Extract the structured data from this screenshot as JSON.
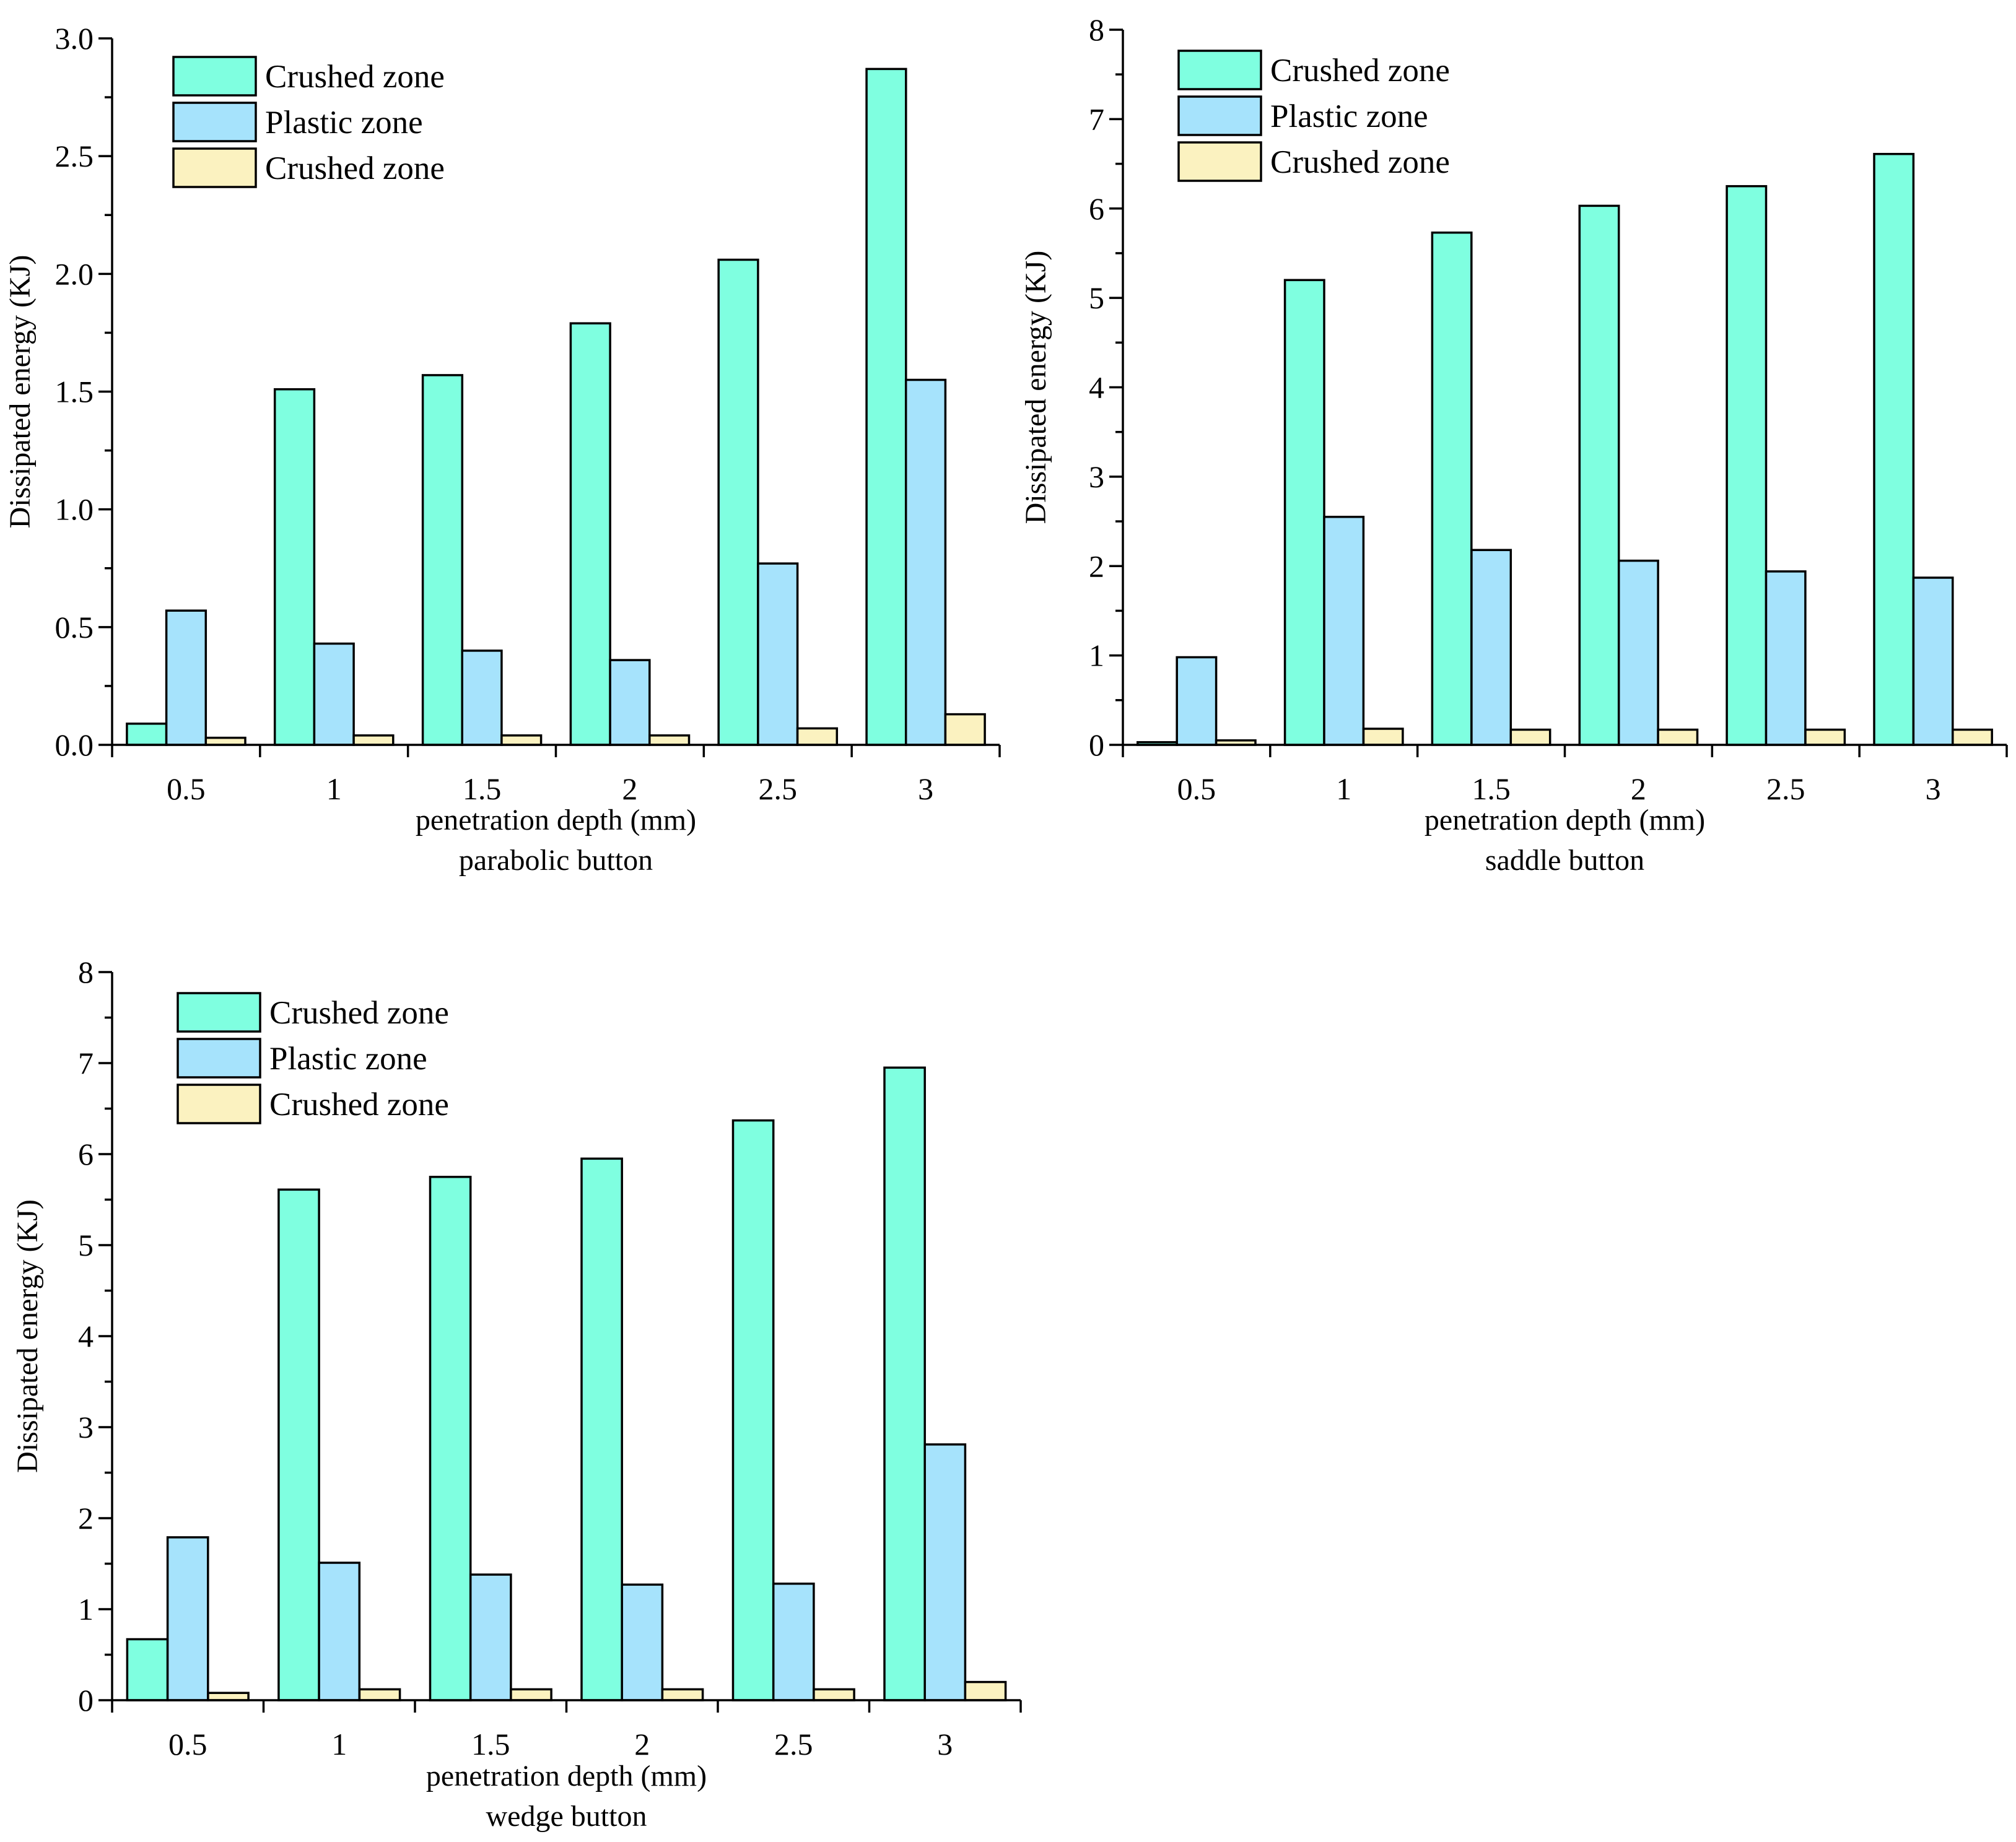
{
  "chart_data": [
    {
      "type": "bar",
      "title": "parabolic button",
      "xlabel": "penetration depth (mm)",
      "ylabel": "Dissipated energy (KJ)",
      "ylim": [
        0,
        3.0
      ],
      "yticks": [
        "0.0",
        "0.5",
        "1.0",
        "1.5",
        "2.0",
        "2.5",
        "3.0"
      ],
      "categories": [
        "0.5",
        "1",
        "1.5",
        "2",
        "2.5",
        "3"
      ],
      "series": [
        {
          "name": "Crushed zone",
          "color": "#7fffe0",
          "values": [
            0.09,
            1.51,
            1.57,
            1.79,
            2.06,
            2.87
          ]
        },
        {
          "name": "Plastic zone",
          "color": "#a6e3fc",
          "values": [
            0.57,
            0.43,
            0.4,
            0.36,
            0.77,
            1.55
          ]
        },
        {
          "name": "Crushed zone",
          "color": "#fbf2c0",
          "values": [
            0.03,
            0.04,
            0.04,
            0.04,
            0.07,
            0.13
          ]
        }
      ]
    },
    {
      "type": "bar",
      "title": "saddle button",
      "xlabel": "penetration depth (mm)",
      "ylabel": "Dissipated energy (KJ)",
      "ylim": [
        0,
        8
      ],
      "yticks": [
        "0",
        "1",
        "2",
        "3",
        "4",
        "5",
        "6",
        "7",
        "8"
      ],
      "categories": [
        "0.5",
        "1",
        "1.5",
        "2",
        "2.5",
        "3"
      ],
      "series": [
        {
          "name": "Crushed zone",
          "color": "#7fffe0",
          "values": [
            0.03,
            5.2,
            5.73,
            6.03,
            6.25,
            6.61
          ]
        },
        {
          "name": "Plastic zone",
          "color": "#a6e3fc",
          "values": [
            0.98,
            2.55,
            2.18,
            2.06,
            1.94,
            1.87
          ]
        },
        {
          "name": "Crushed zone",
          "color": "#fbf2c0",
          "values": [
            0.05,
            0.18,
            0.17,
            0.17,
            0.17,
            0.17
          ]
        }
      ]
    },
    {
      "type": "bar",
      "title": "wedge button",
      "xlabel": "penetration depth (mm)",
      "ylabel": "Dissipated energy (KJ)",
      "ylim": [
        0,
        8
      ],
      "yticks": [
        "0",
        "1",
        "2",
        "3",
        "4",
        "5",
        "6",
        "7",
        "8"
      ],
      "categories": [
        "0.5",
        "1",
        "1.5",
        "2",
        "2.5",
        "3"
      ],
      "series": [
        {
          "name": "Crushed zone",
          "color": "#7fffe0",
          "values": [
            0.67,
            5.61,
            5.75,
            5.95,
            6.37,
            6.95
          ]
        },
        {
          "name": "Plastic zone",
          "color": "#a6e3fc",
          "values": [
            1.79,
            1.51,
            1.38,
            1.27,
            1.28,
            2.81
          ]
        },
        {
          "name": "Crushed zone",
          "color": "#fbf2c0",
          "values": [
            0.08,
            0.12,
            0.12,
            0.12,
            0.12,
            0.2
          ]
        }
      ]
    }
  ]
}
